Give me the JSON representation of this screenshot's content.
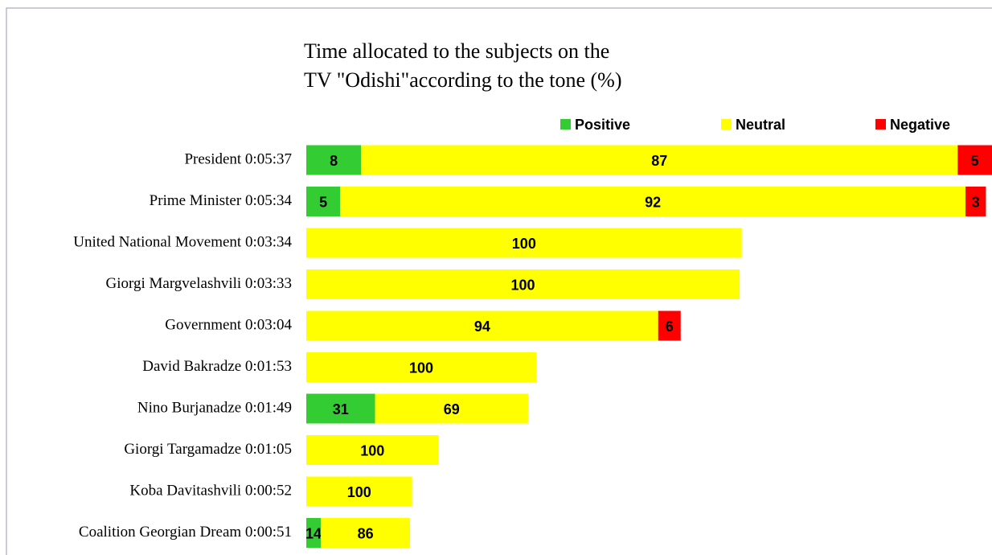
{
  "chart_data": {
    "type": "stacked-bar-horizontal",
    "title": [
      "Time allocated to the subjects on the",
      "TV \"Odishi\"according to the tone (%)"
    ],
    "categories": [
      "President 0:05:37",
      "Prime Minister 0:05:34",
      "United National Movement 0:03:34",
      "Giorgi Margvelashvili 0:03:33",
      "Government 0:03:04",
      "David Bakradze 0:01:53",
      "Nino Burjanadze 0:01:49",
      "Giorgi Targamadze 0:01:05",
      "Koba Davitashvili 0:00:52",
      "Coalition Georgian Dream 0:00:51"
    ],
    "series": [
      {
        "name": "Positive",
        "color": "#33cc33",
        "values": [
          8,
          5,
          null,
          null,
          null,
          null,
          31,
          null,
          null,
          14
        ]
      },
      {
        "name": "Neutral",
        "color": "#ffff00",
        "values": [
          87,
          92,
          100,
          100,
          94,
          100,
          69,
          100,
          100,
          86
        ]
      },
      {
        "name": "Negative",
        "color": "#ff0000",
        "values": [
          5,
          3,
          null,
          null,
          6,
          null,
          null,
          null,
          null,
          null
        ]
      }
    ],
    "legend": "top-right"
  }
}
